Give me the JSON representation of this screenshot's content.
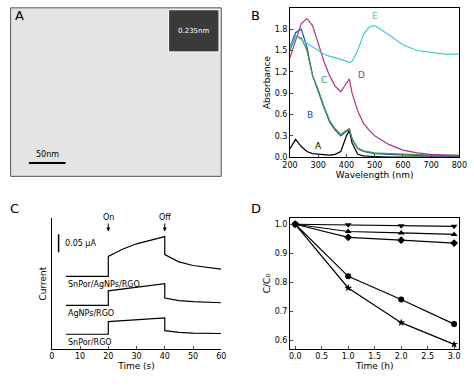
{
  "chart_data": [
    {
      "type": "image",
      "label": "A",
      "scale_bar_label": "50nm",
      "inset_text": "0.235nm"
    },
    {
      "type": "line",
      "label": "B",
      "xlabel": "Wavelength (nm)",
      "ylabel": "Absorbance",
      "x": [
        200,
        220,
        240,
        260,
        280,
        300,
        320,
        340,
        360,
        380,
        400,
        410,
        420,
        440,
        460,
        480,
        500,
        550,
        600,
        650,
        700,
        750,
        800
      ],
      "xlim": [
        200,
        800
      ],
      "xticks": [
        200,
        300,
        400,
        500,
        600,
        700,
        800
      ],
      "ylim": [
        0,
        2.1
      ],
      "yticks": [
        {
          "value": 0,
          "label": "0.0"
        },
        0.3,
        0.6,
        0.9,
        1.2,
        1.5,
        1.8
      ],
      "series": [
        {
          "name": "A",
          "color": "#000000",
          "values": [
            0.12,
            0.25,
            0.15,
            0.08,
            0.05,
            0.04,
            0.03,
            0.03,
            0.04,
            0.08,
            0.3,
            0.38,
            0.2,
            0.04,
            0.02,
            0.01,
            0.01,
            0,
            0,
            0,
            0,
            0,
            0
          ]
        },
        {
          "name": "B",
          "color": "#2a44c8",
          "values": [
            1.55,
            1.75,
            1.8,
            1.55,
            1.15,
            0.92,
            0.7,
            0.5,
            0.38,
            0.3,
            0.36,
            0.4,
            0.25,
            0.12,
            0.08,
            0.06,
            0.05,
            0.04,
            0.03,
            0.02,
            0.02,
            0.02,
            0.02
          ]
        },
        {
          "name": "C",
          "color": "#3c9c3c",
          "values": [
            1.5,
            1.7,
            1.68,
            1.5,
            1.15,
            0.95,
            0.72,
            0.52,
            0.4,
            0.32,
            0.38,
            0.4,
            0.26,
            0.13,
            0.09,
            0.07,
            0.06,
            0.05,
            0.04,
            0.03,
            0.03,
            0.03,
            0.03
          ]
        },
        {
          "name": "D",
          "color": "#b0308a",
          "values": [
            1.4,
            1.65,
            1.88,
            1.95,
            1.85,
            1.6,
            1.35,
            1.15,
            1.0,
            0.92,
            1.05,
            1.1,
            0.9,
            0.65,
            0.48,
            0.38,
            0.3,
            0.18,
            0.1,
            0.06,
            0.04,
            0.03,
            0.02
          ]
        },
        {
          "name": "E",
          "color": "#44c8d0",
          "values": [
            1.55,
            1.7,
            1.65,
            1.6,
            1.55,
            1.5,
            1.45,
            1.42,
            1.4,
            1.38,
            1.35,
            1.33,
            1.35,
            1.5,
            1.72,
            1.83,
            1.85,
            1.72,
            1.58,
            1.5,
            1.47,
            1.45,
            1.45
          ]
        }
      ]
    },
    {
      "type": "line",
      "label": "C",
      "xlabel": "Time (s)",
      "ylabel": "Current",
      "x": [
        5,
        20,
        20,
        25,
        30,
        35,
        40,
        40,
        45,
        50,
        55,
        60
      ],
      "xlim": [
        0,
        60
      ],
      "xticks": [
        0,
        10,
        20,
        30,
        40,
        50,
        60
      ],
      "ylim": [
        0,
        0.36
      ],
      "tick_labels": "x",
      "scale_bar": {
        "value": 0.05,
        "label": "0.05 µA"
      },
      "annotations": [
        {
          "text": "On",
          "x": 20
        },
        {
          "text": "Off",
          "x": 40
        }
      ],
      "series": [
        {
          "name": "SnPor/AgNPs/RGO",
          "color": "#000000",
          "values": [
            0.2,
            0.2,
            0.255,
            0.275,
            0.29,
            0.3,
            0.31,
            0.26,
            0.24,
            0.23,
            0.225,
            0.22
          ]
        },
        {
          "name": "AgNPs/RGO",
          "color": "#000000",
          "values": [
            0.12,
            0.12,
            0.16,
            0.165,
            0.17,
            0.175,
            0.18,
            0.14,
            0.133,
            0.13,
            0.128,
            0.127
          ]
        },
        {
          "name": "SnPor/RGO",
          "color": "#000000",
          "values": [
            0.04,
            0.04,
            0.075,
            0.078,
            0.08,
            0.082,
            0.085,
            0.05,
            0.045,
            0.043,
            0.042,
            0.042
          ]
        }
      ]
    },
    {
      "type": "scatter",
      "label": "D",
      "xlabel": "Time (h)",
      "ylabel": "C/C₀",
      "x": [
        0,
        1,
        2,
        3
      ],
      "xlim": [
        -0.1,
        3.1
      ],
      "xticks": [
        {
          "value": 0,
          "label": "0.0"
        },
        0.5,
        {
          "value": 1,
          "label": "1.0"
        },
        1.5,
        {
          "value": 2,
          "label": "2.0"
        },
        2.5,
        {
          "value": 3,
          "label": "3.0"
        }
      ],
      "ylim": [
        0.57,
        1.02
      ],
      "yticks": [
        0.6,
        0.7,
        0.8,
        0.9,
        {
          "value": 1,
          "label": "1.0"
        }
      ],
      "series": [
        {
          "color": "#000000",
          "marker": "triangle-down",
          "values": [
            1,
            0.998,
            0.995,
            0.993
          ]
        },
        {
          "color": "#000000",
          "marker": "triangle-up",
          "values": [
            1,
            0.975,
            0.97,
            0.965
          ]
        },
        {
          "color": "#000000",
          "marker": "diamond",
          "values": [
            1,
            0.955,
            0.945,
            0.935
          ]
        },
        {
          "color": "#000000",
          "marker": "circle",
          "values": [
            1,
            0.82,
            0.74,
            0.655
          ]
        },
        {
          "color": "#000000",
          "marker": "star",
          "values": [
            1,
            0.78,
            0.66,
            0.585
          ]
        }
      ]
    }
  ]
}
